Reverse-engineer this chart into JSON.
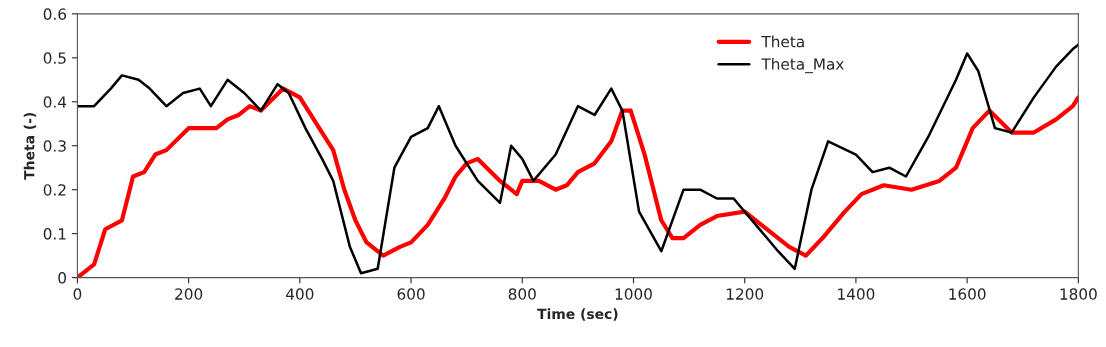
{
  "chart_data": {
    "type": "line",
    "xlabel": "Time (sec)",
    "ylabel": "Theta (-)",
    "xlim": [
      0,
      1800
    ],
    "xticks": [
      0,
      200,
      400,
      600,
      800,
      1000,
      1200,
      1400,
      1600,
      1800
    ],
    "ylim": [
      0,
      0.6
    ],
    "yticks": [
      0,
      0.1,
      0.2,
      0.3,
      0.4,
      0.5,
      0.6
    ],
    "grid": false,
    "legend": "top right",
    "marker": "none",
    "line_style": "solid",
    "series": [
      {
        "name": "Theta",
        "color": "#ff0000",
        "x": [
          0,
          30,
          50,
          80,
          100,
          120,
          140,
          160,
          200,
          250,
          270,
          290,
          310,
          330,
          370,
          400,
          440,
          460,
          480,
          500,
          520,
          550,
          580,
          600,
          630,
          660,
          680,
          700,
          720,
          760,
          790,
          800,
          830,
          860,
          880,
          900,
          930,
          960,
          980,
          995,
          1020,
          1050,
          1070,
          1090,
          1120,
          1150,
          1200,
          1230,
          1280,
          1310,
          1340,
          1380,
          1410,
          1450,
          1500,
          1550,
          1580,
          1610,
          1640,
          1680,
          1720,
          1760,
          1790,
          1800
        ],
        "values": [
          0.0,
          0.03,
          0.11,
          0.13,
          0.23,
          0.24,
          0.28,
          0.29,
          0.34,
          0.34,
          0.36,
          0.37,
          0.39,
          0.38,
          0.43,
          0.41,
          0.33,
          0.29,
          0.2,
          0.13,
          0.08,
          0.05,
          0.07,
          0.08,
          0.12,
          0.18,
          0.23,
          0.26,
          0.27,
          0.22,
          0.19,
          0.22,
          0.22,
          0.2,
          0.21,
          0.24,
          0.26,
          0.31,
          0.38,
          0.38,
          0.28,
          0.13,
          0.09,
          0.09,
          0.12,
          0.14,
          0.15,
          0.12,
          0.07,
          0.05,
          0.09,
          0.15,
          0.19,
          0.21,
          0.2,
          0.22,
          0.25,
          0.34,
          0.38,
          0.33,
          0.33,
          0.36,
          0.39,
          0.41
        ]
      },
      {
        "name": "Theta_Max",
        "color": "#000000",
        "x": [
          0,
          30,
          60,
          80,
          110,
          130,
          160,
          190,
          220,
          240,
          270,
          300,
          330,
          360,
          380,
          410,
          440,
          460,
          490,
          510,
          540,
          570,
          600,
          630,
          650,
          680,
          720,
          760,
          780,
          800,
          820,
          860,
          900,
          930,
          960,
          980,
          1010,
          1050,
          1090,
          1120,
          1150,
          1180,
          1220,
          1260,
          1290,
          1320,
          1350,
          1400,
          1430,
          1460,
          1490,
          1530,
          1580,
          1600,
          1620,
          1650,
          1680,
          1720,
          1760,
          1790,
          1800
        ],
        "values": [
          0.39,
          0.39,
          0.43,
          0.46,
          0.45,
          0.43,
          0.39,
          0.42,
          0.43,
          0.39,
          0.45,
          0.42,
          0.38,
          0.44,
          0.42,
          0.34,
          0.27,
          0.22,
          0.07,
          0.01,
          0.02,
          0.25,
          0.32,
          0.34,
          0.39,
          0.3,
          0.22,
          0.17,
          0.3,
          0.27,
          0.22,
          0.28,
          0.39,
          0.37,
          0.43,
          0.38,
          0.15,
          0.06,
          0.2,
          0.2,
          0.18,
          0.18,
          0.12,
          0.06,
          0.02,
          0.2,
          0.31,
          0.28,
          0.24,
          0.25,
          0.23,
          0.32,
          0.45,
          0.51,
          0.47,
          0.34,
          0.33,
          0.41,
          0.48,
          0.52,
          0.53
        ]
      }
    ]
  }
}
